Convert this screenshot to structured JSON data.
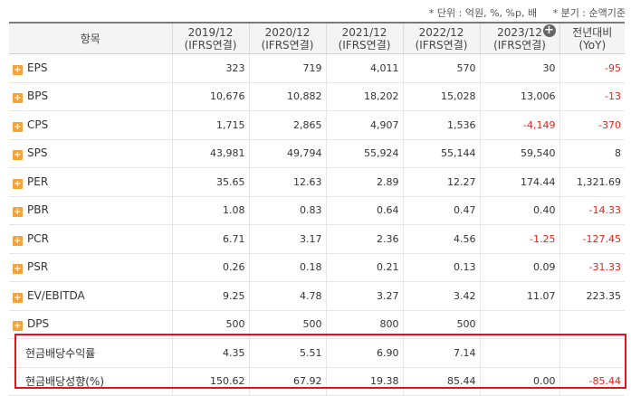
{
  "unit_note": {
    "unit": "* 단위 : 억원, %, %p, 배",
    "period": "* 분기 : 순액기준"
  },
  "header": {
    "item": "항목",
    "columns": [
      {
        "year": "2019/12",
        "basis": "(IFRS연결)"
      },
      {
        "year": "2020/12",
        "basis": "(IFRS연결)"
      },
      {
        "year": "2021/12",
        "basis": "(IFRS연결)"
      },
      {
        "year": "2022/12",
        "basis": "(IFRS연결)"
      },
      {
        "year": "2023/12",
        "basis": "(IFRS연결)"
      },
      {
        "year": "전년대비",
        "basis": "(YoY)"
      }
    ]
  },
  "rows": [
    {
      "label": "EPS",
      "values": [
        "323",
        "719",
        "4,011",
        "570",
        "30",
        "-95"
      ]
    },
    {
      "label": "BPS",
      "values": [
        "10,676",
        "10,882",
        "18,202",
        "15,028",
        "13,006",
        "-13"
      ]
    },
    {
      "label": "CPS",
      "values": [
        "1,715",
        "2,865",
        "4,907",
        "1,536",
        "-4,149",
        "-370"
      ]
    },
    {
      "label": "SPS",
      "values": [
        "43,981",
        "49,794",
        "55,924",
        "55,144",
        "59,540",
        "8"
      ]
    },
    {
      "label": "PER",
      "values": [
        "35.65",
        "12.63",
        "2.89",
        "12.27",
        "174.44",
        "1,321.69"
      ]
    },
    {
      "label": "PBR",
      "values": [
        "1.08",
        "0.83",
        "0.64",
        "0.47",
        "0.40",
        "-14.33"
      ]
    },
    {
      "label": "PCR",
      "values": [
        "6.71",
        "3.17",
        "2.36",
        "4.56",
        "-1.25",
        "-127.45"
      ]
    },
    {
      "label": "PSR",
      "values": [
        "0.26",
        "0.18",
        "0.21",
        "0.13",
        "0.09",
        "-31.33"
      ]
    },
    {
      "label": "EV/EBITDA",
      "values": [
        "9.25",
        "4.78",
        "3.27",
        "3.42",
        "11.07",
        "223.35"
      ]
    },
    {
      "label": "DPS",
      "values": [
        "500",
        "500",
        "800",
        "500",
        "",
        ""
      ]
    },
    {
      "label": "현금배당수익률",
      "values": [
        "4.35",
        "5.51",
        "6.90",
        "7.14",
        "",
        ""
      ]
    },
    {
      "label": "현금배당성향(%)",
      "values": [
        "150.62",
        "67.92",
        "19.38",
        "85.44",
        "0.00",
        "-85.44"
      ]
    }
  ],
  "colors": {
    "negative": "#e8231b",
    "highlight": "#e4121b",
    "expand_icon": "#f6a23a"
  }
}
